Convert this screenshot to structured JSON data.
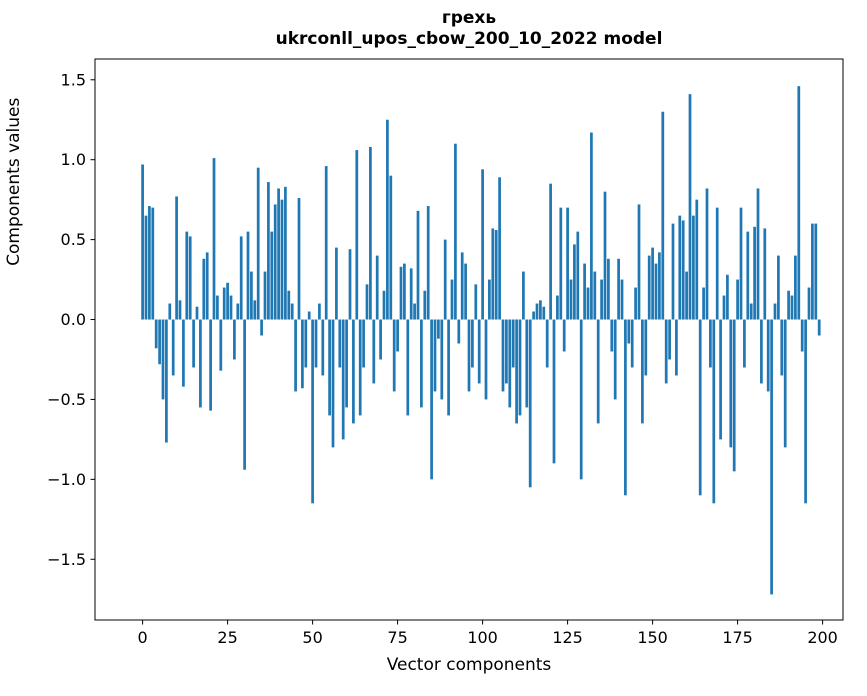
{
  "figure": {
    "title_line1": "грехь",
    "title_line2": "ukrconll_upos_cbow_200_10_2022 model",
    "xlabel": "Vector components",
    "ylabel": "Components values"
  },
  "chart_data": {
    "type": "bar",
    "title": "грехь",
    "subtitle": "ukrconll_upos_cbow_200_10_2022 model",
    "xlabel": "Vector components",
    "ylabel": "Components values",
    "bar_color": "#1f77b4",
    "grid": false,
    "legend": "none",
    "xlim": [
      -14,
      206
    ],
    "ylim": [
      -1.88,
      1.63
    ],
    "x_ticks": [
      0,
      25,
      50,
      75,
      100,
      125,
      150,
      175,
      200
    ],
    "y_ticks": [
      -1.5,
      -1.0,
      -0.5,
      0.0,
      0.5,
      1.0,
      1.5
    ],
    "values": [
      0.97,
      0.65,
      0.71,
      0.7,
      -0.18,
      -0.28,
      -0.5,
      -0.77,
      0.1,
      -0.35,
      0.77,
      0.12,
      -0.42,
      0.55,
      0.52,
      -0.3,
      0.08,
      -0.55,
      0.38,
      0.42,
      -0.57,
      1.01,
      0.15,
      -0.32,
      0.2,
      0.23,
      0.15,
      -0.25,
      0.1,
      0.52,
      -0.94,
      0.55,
      0.3,
      0.12,
      0.95,
      -0.1,
      0.3,
      0.86,
      0.55,
      0.72,
      0.82,
      0.75,
      0.83,
      0.18,
      0.1,
      -0.45,
      0.76,
      -0.43,
      -0.3,
      0.05,
      -1.15,
      -0.3,
      0.1,
      -0.35,
      0.96,
      -0.6,
      -0.8,
      0.45,
      -0.3,
      -0.75,
      -0.55,
      0.44,
      -0.65,
      1.06,
      -0.6,
      -0.3,
      0.22,
      1.08,
      -0.4,
      0.4,
      -0.25,
      0.18,
      1.25,
      0.9,
      -0.45,
      -0.2,
      0.33,
      0.35,
      -0.6,
      0.32,
      0.1,
      0.68,
      -0.55,
      0.18,
      0.71,
      -1.0,
      -0.45,
      -0.12,
      -0.5,
      0.5,
      -0.6,
      0.25,
      1.1,
      -0.15,
      0.42,
      0.35,
      -0.45,
      -0.3,
      0.22,
      -0.4,
      0.94,
      -0.5,
      0.25,
      0.57,
      0.56,
      0.89,
      -0.45,
      -0.4,
      -0.55,
      -0.3,
      -0.65,
      -0.6,
      0.3,
      -0.55,
      -1.05,
      0.05,
      0.1,
      0.12,
      0.08,
      -0.3,
      0.85,
      -0.9,
      0.15,
      0.7,
      -0.2,
      0.7,
      0.25,
      0.47,
      0.55,
      -1.0,
      0.35,
      0.2,
      1.17,
      0.3,
      -0.65,
      0.25,
      0.8,
      0.38,
      -0.2,
      -0.5,
      0.38,
      0.25,
      -1.1,
      -0.15,
      -0.3,
      0.2,
      0.72,
      -0.65,
      -0.35,
      0.4,
      0.45,
      0.35,
      0.42,
      1.3,
      -0.4,
      -0.25,
      0.6,
      -0.35,
      0.65,
      0.62,
      0.3,
      1.41,
      0.65,
      0.75,
      -1.1,
      0.2,
      0.82,
      -0.3,
      -1.15,
      0.7,
      -0.75,
      0.15,
      0.28,
      -0.8,
      -0.95,
      0.25,
      0.7,
      -0.3,
      0.55,
      0.1,
      0.58,
      0.82,
      -0.4,
      0.57,
      -0.45,
      -1.72,
      0.1,
      0.4,
      -0.35,
      -0.8,
      0.18,
      0.15,
      0.4,
      1.46,
      -0.2,
      -1.15,
      0.2,
      0.6,
      0.6,
      -0.1
    ]
  }
}
